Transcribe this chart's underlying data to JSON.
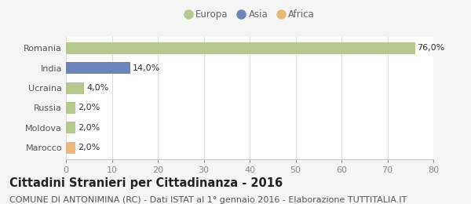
{
  "categories": [
    "Romania",
    "India",
    "Ucraina",
    "Russia",
    "Moldova",
    "Marocco"
  ],
  "values": [
    76.0,
    14.0,
    4.0,
    2.0,
    2.0,
    2.0
  ],
  "bar_colors": [
    "#b5c98e",
    "#6b85bb",
    "#b5c98e",
    "#b5c98e",
    "#b5c98e",
    "#e8b97a"
  ],
  "bar_labels": [
    "76,0%",
    "14,0%",
    "4,0%",
    "2,0%",
    "2,0%",
    "2,0%"
  ],
  "legend_labels": [
    "Europa",
    "Asia",
    "Africa"
  ],
  "legend_colors": [
    "#b5c98e",
    "#6b85bb",
    "#e8b97a"
  ],
  "title": "Cittadini Stranieri per Cittadinanza - 2016",
  "subtitle": "COMUNE DI ANTONIMINA (RC) - Dati ISTAT al 1° gennaio 2016 - Elaborazione TUTTITALIA.IT",
  "xlim": [
    0,
    80
  ],
  "xticks": [
    0,
    10,
    20,
    30,
    40,
    50,
    60,
    70,
    80
  ],
  "background_color": "#f5f5f5",
  "plot_background": "#ffffff",
  "grid_color": "#dddddd",
  "title_fontsize": 10.5,
  "subtitle_fontsize": 8,
  "label_fontsize": 8,
  "tick_fontsize": 8
}
